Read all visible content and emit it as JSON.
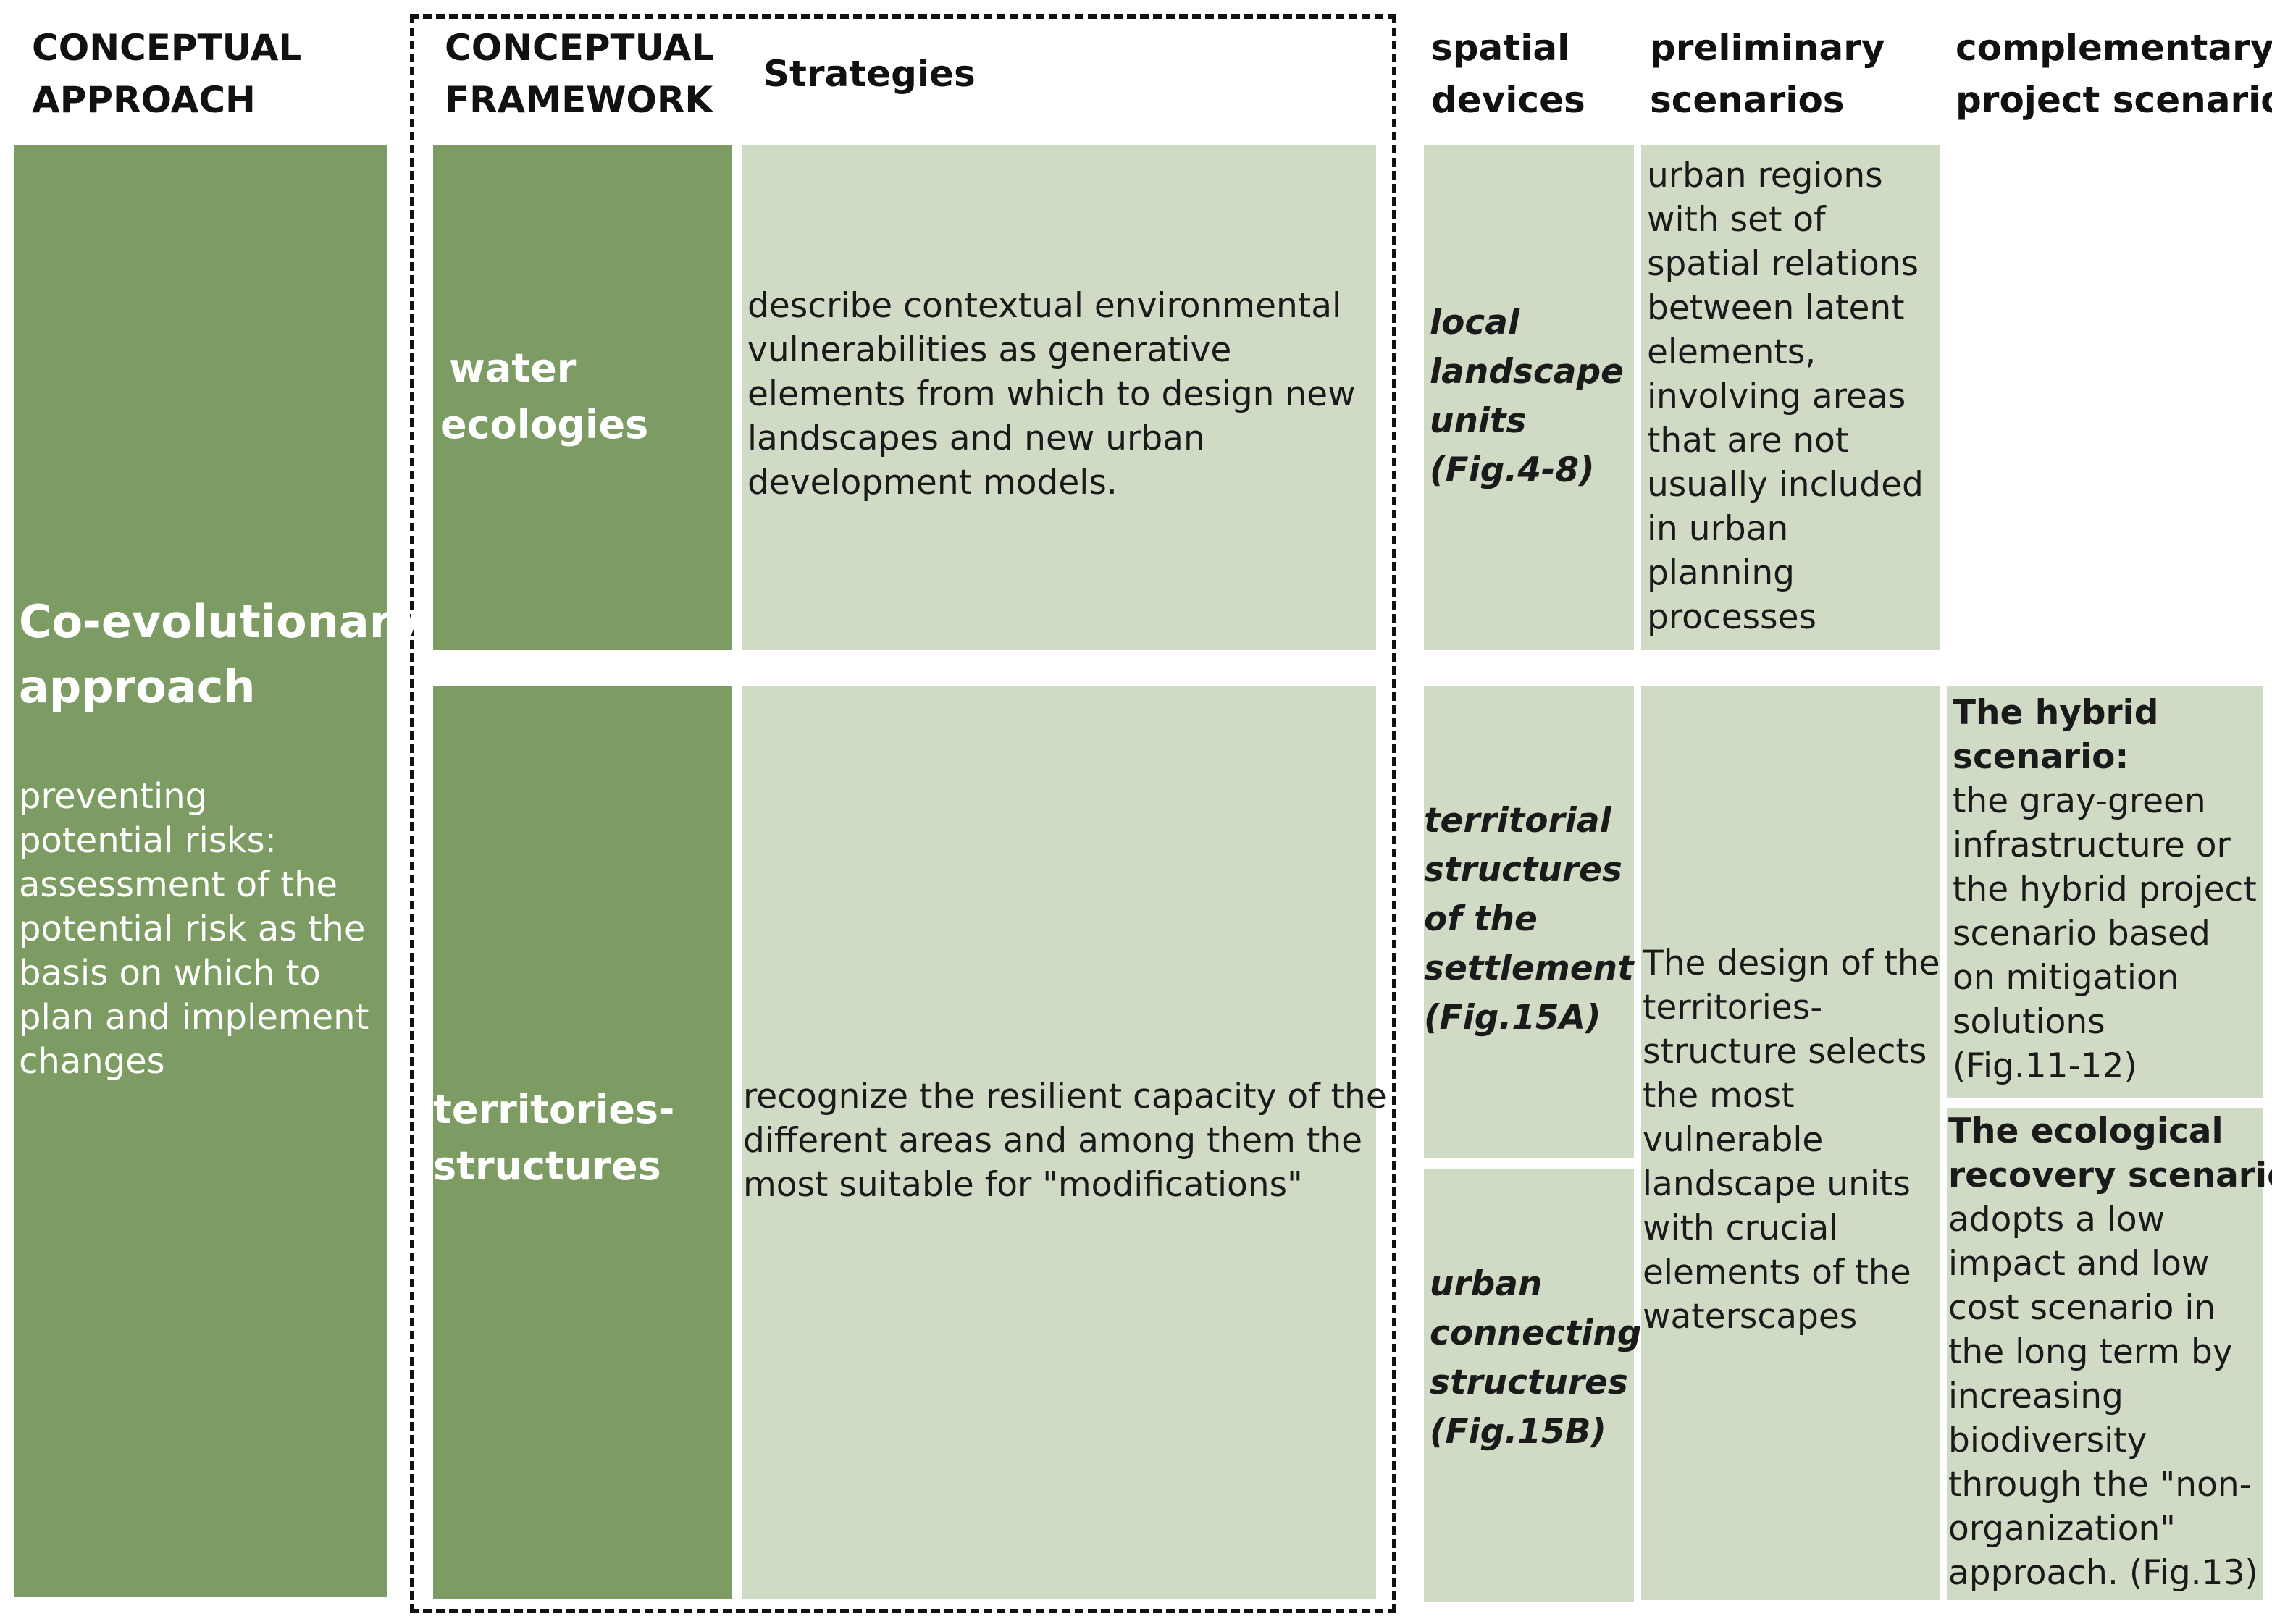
{
  "headers": {
    "conceptual_approach": [
      "CONCEPTUAL",
      "APPROACH"
    ],
    "conceptual_framework": [
      "CONCEPTUAL",
      "FRAMEWORK"
    ],
    "strategies": "Strategies",
    "spatial_devices": [
      "spatial",
      "devices"
    ],
    "preliminary_scenarios": [
      "preliminary",
      "scenarios"
    ],
    "complementary_project_scenario": [
      "complementary",
      "project scenario"
    ]
  },
  "approach": {
    "title": [
      "Co-evolutionary",
      "approach"
    ],
    "description": [
      "preventing",
      "potential risks:",
      "assessment of the",
      "potential risk as the",
      "basis on which to",
      "plan and implement",
      "changes"
    ]
  },
  "framework": {
    "water_ecologies": [
      "water",
      "ecologies"
    ],
    "territories_structures": [
      "territories-",
      "structures"
    ]
  },
  "strategies": {
    "water": [
      "describe contextual environmental",
      "vulnerabilities as generative",
      "elements from which to design new",
      "landscapes and new urban",
      "development models."
    ],
    "territories": [
      "recognize the resilient capacity of the",
      "different areas and among them the",
      "most suitable for \"modifications\""
    ]
  },
  "spatial_devices": {
    "local_landscape_units": [
      "local",
      "landscape",
      "units",
      "(Fig.4-8)"
    ],
    "territorial_structures": [
      "territorial",
      "structures",
      "of the",
      "settlement",
      "(Fig.15A)"
    ],
    "urban_connecting_structures": [
      "urban",
      "connecting",
      "structures",
      "(Fig.15B)"
    ]
  },
  "preliminary_scenarios": {
    "water": [
      "urban regions",
      "with set of",
      "spatial relations",
      "between latent",
      "elements,",
      "involving areas",
      "that are not",
      "usually included",
      "in urban",
      "planning",
      "processes"
    ],
    "territories": [
      "The design of the",
      "territories-",
      "structure selects",
      "the most",
      "vulnerable",
      "landscape units",
      "with crucial",
      "elements of the",
      "waterscapes"
    ]
  },
  "complementary": {
    "hybrid_title": [
      "The hybrid",
      "scenario:"
    ],
    "hybrid_text": [
      "the gray-green",
      "infrastructure or",
      "the hybrid project",
      "scenario based",
      "on mitigation",
      "solutions",
      "(Fig.11-12)"
    ],
    "ecological_title": [
      "The ecological",
      "recovery scenario"
    ],
    "ecological_text": [
      "adopts a low",
      "impact and low",
      "cost scenario in",
      "the long term by",
      "increasing",
      "biodiversity",
      "through the \"non-",
      "organization\"",
      "approach. (Fig.13)"
    ]
  },
  "colors": {
    "dark_green": "#7d9c63",
    "light_green": "#cfdbc4"
  }
}
